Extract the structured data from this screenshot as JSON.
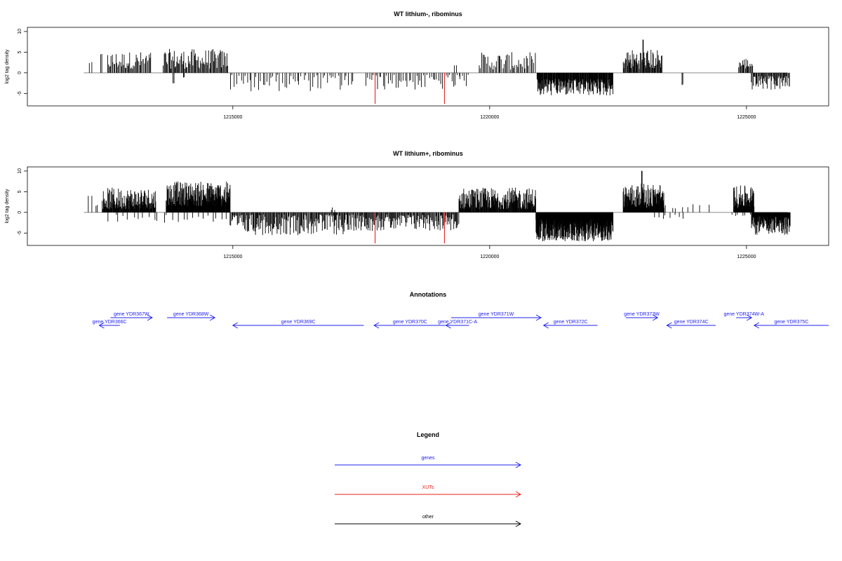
{
  "chart_data": [
    {
      "type": "bar",
      "title": "WT lithium-, ribominus",
      "ylabel": "log2 tag density",
      "xlim": [
        1211000,
        1226600
      ],
      "ylim": [
        -8,
        11
      ],
      "yticks": [
        -5,
        0,
        5,
        10
      ],
      "ytick_labels": [
        "-5",
        "0",
        "5",
        "10"
      ],
      "xticks": [
        1215000,
        1220000,
        1225000
      ],
      "xtick_labels": [
        "1215000",
        "1220000",
        "1225000"
      ],
      "baseline_range": [
        1212100,
        1225800
      ],
      "highlight_color": "#e8201e",
      "highlights": [
        {
          "x": 1217770,
          "y": -7.5
        },
        {
          "x": 1219120,
          "y": -7.5
        }
      ],
      "segments": [
        {
          "x0": 1212200,
          "x1": 1212250,
          "step": 50,
          "min": 2.3,
          "max": 2.6,
          "sign": 1
        },
        {
          "x0": 1212420,
          "x1": 1212460,
          "step": 40,
          "min": 4.3,
          "max": 4.6,
          "sign": 1
        },
        {
          "x0": 1212560,
          "x1": 1213420,
          "step": 18,
          "min": 1.0,
          "max": 5.2,
          "sign": 1
        },
        {
          "x0": 1213650,
          "x1": 1214900,
          "step": 16,
          "min": 1.0,
          "max": 5.8,
          "sign": 1
        },
        {
          "x0": 1213840,
          "x1": 1213860,
          "step": 20,
          "min": 2.5,
          "max": 2.7,
          "sign": -1
        },
        {
          "x0": 1214040,
          "x1": 1214060,
          "step": 20,
          "min": 1.0,
          "max": 1.3,
          "sign": -1
        },
        {
          "x0": 1214950,
          "x1": 1217350,
          "step": 42,
          "min": 0.5,
          "max": 4.5,
          "sign": -1
        },
        {
          "x0": 1217600,
          "x1": 1219600,
          "step": 36,
          "min": 0.5,
          "max": 4.2,
          "sign": -1
        },
        {
          "x0": 1219300,
          "x1": 1219350,
          "step": 50,
          "min": 1.8,
          "max": 2.3,
          "sign": 1
        },
        {
          "x0": 1219800,
          "x1": 1220900,
          "step": 24,
          "min": 0.8,
          "max": 5.0,
          "sign": 1
        },
        {
          "x0": 1220920,
          "x1": 1222400,
          "step": 8,
          "min": 1.5,
          "max": 5.6,
          "sign": -1
        },
        {
          "x0": 1222600,
          "x1": 1223360,
          "step": 12,
          "min": 1.0,
          "max": 5.8,
          "sign": 1
        },
        {
          "x0": 1222980,
          "x1": 1222990,
          "step": 10,
          "min": 8.0,
          "max": 8.1,
          "sign": 1
        },
        {
          "x0": 1223740,
          "x1": 1223760,
          "step": 20,
          "min": 2.8,
          "max": 3.0,
          "sign": -1
        },
        {
          "x0": 1224850,
          "x1": 1225120,
          "step": 14,
          "min": 1.0,
          "max": 3.7,
          "sign": 1
        },
        {
          "x0": 1225100,
          "x1": 1225850,
          "step": 14,
          "min": 0.8,
          "max": 4.2,
          "sign": -1
        }
      ]
    },
    {
      "type": "bar",
      "title": "WT lithium+, ribominus",
      "ylabel": "log2 tag density",
      "xlim": [
        1211000,
        1226600
      ],
      "ylim": [
        -8,
        11
      ],
      "yticks": [
        -5,
        0,
        5,
        10
      ],
      "ytick_labels": [
        "-5",
        "0",
        "5",
        "10"
      ],
      "xticks": [
        1215000,
        1220000,
        1225000
      ],
      "xtick_labels": [
        "1215000",
        "1220000",
        "1225000"
      ],
      "baseline_range": [
        1212100,
        1225800
      ],
      "highlight_color": "#e8201e",
      "highlights": [
        {
          "x": 1217770,
          "y": -7.5
        },
        {
          "x": 1219120,
          "y": -7.5
        }
      ],
      "segments": [
        {
          "x0": 1212200,
          "x1": 1212250,
          "step": 50,
          "min": 4.0,
          "max": 4.3,
          "sign": 1
        },
        {
          "x0": 1212330,
          "x1": 1212380,
          "step": 50,
          "min": 1.5,
          "max": 1.8,
          "sign": 1
        },
        {
          "x0": 1212460,
          "x1": 1213500,
          "step": 8,
          "min": 0.8,
          "max": 6.0,
          "sign": 1
        },
        {
          "x0": 1213700,
          "x1": 1214950,
          "step": 6,
          "min": 1.5,
          "max": 7.5,
          "sign": 1
        },
        {
          "x0": 1212600,
          "x1": 1214900,
          "step": 95,
          "min": 0.5,
          "max": 2.6,
          "sign": -1
        },
        {
          "x0": 1214950,
          "x1": 1217350,
          "step": 14,
          "min": 0.5,
          "max": 5.5,
          "sign": -1
        },
        {
          "x0": 1216900,
          "x1": 1217000,
          "step": 50,
          "min": 0.5,
          "max": 1.3,
          "sign": 1
        },
        {
          "x0": 1217350,
          "x1": 1219400,
          "step": 14,
          "min": 0.5,
          "max": 4.5,
          "sign": -1
        },
        {
          "x0": 1219400,
          "x1": 1220900,
          "step": 8,
          "min": 0.8,
          "max": 6.0,
          "sign": 1
        },
        {
          "x0": 1220900,
          "x1": 1222400,
          "step": 4,
          "min": 1.5,
          "max": 7.0,
          "sign": -1
        },
        {
          "x0": 1222600,
          "x1": 1223400,
          "step": 6,
          "min": 1.0,
          "max": 7.0,
          "sign": 1
        },
        {
          "x0": 1222960,
          "x1": 1222970,
          "step": 10,
          "min": 10.0,
          "max": 10.1,
          "sign": 1
        },
        {
          "x0": 1223400,
          "x1": 1224300,
          "step": 120,
          "min": 0.8,
          "max": 2.0,
          "sign": 1
        },
        {
          "x0": 1223200,
          "x1": 1223800,
          "step": 80,
          "min": 0.6,
          "max": 1.7,
          "sign": -1
        },
        {
          "x0": 1224750,
          "x1": 1225150,
          "step": 6,
          "min": 1.0,
          "max": 6.5,
          "sign": 1
        },
        {
          "x0": 1224700,
          "x1": 1225200,
          "step": 70,
          "min": 0.5,
          "max": 1.2,
          "sign": -1
        },
        {
          "x0": 1225100,
          "x1": 1225850,
          "step": 6,
          "min": 1.0,
          "max": 5.5,
          "sign": -1
        }
      ]
    }
  ],
  "annotations": {
    "title": "Annotations",
    "color": "#2020f0",
    "genes": [
      {
        "label": "gene YDR366C",
        "start": 1212800,
        "end": 1212400,
        "row": 0
      },
      {
        "label": "gene YDR367W",
        "start": 1212620,
        "end": 1213430,
        "row": 1
      },
      {
        "label": "gene YDR368W",
        "start": 1213720,
        "end": 1214650,
        "row": 1
      },
      {
        "label": "gene YDR369C",
        "start": 1217550,
        "end": 1215000,
        "row": 0
      },
      {
        "label": "gene YDR370C",
        "start": 1219150,
        "end": 1217750,
        "row": 0
      },
      {
        "label": "gene YDR371C-A",
        "start": 1219600,
        "end": 1219150,
        "row": 0
      },
      {
        "label": "gene YDR371W",
        "start": 1219250,
        "end": 1221000,
        "row": 1
      },
      {
        "label": "gene YDR372C",
        "start": 1222100,
        "end": 1221050,
        "row": 0
      },
      {
        "label": "gene YDR373W",
        "start": 1222650,
        "end": 1223270,
        "row": 1
      },
      {
        "label": "gene YDR374C",
        "start": 1224400,
        "end": 1223450,
        "row": 0
      },
      {
        "label": "gene YDR374W-A",
        "start": 1224800,
        "end": 1225100,
        "row": 1
      },
      {
        "label": "gene YDR375C",
        "start": 1226600,
        "end": 1225150,
        "row": 0
      }
    ]
  },
  "legend": {
    "title": "Legend",
    "items": [
      {
        "label": "genes",
        "color": "#2020f0"
      },
      {
        "label": "XUTs",
        "color": "#e8201e"
      },
      {
        "label": "other",
        "color": "#000000"
      }
    ]
  }
}
